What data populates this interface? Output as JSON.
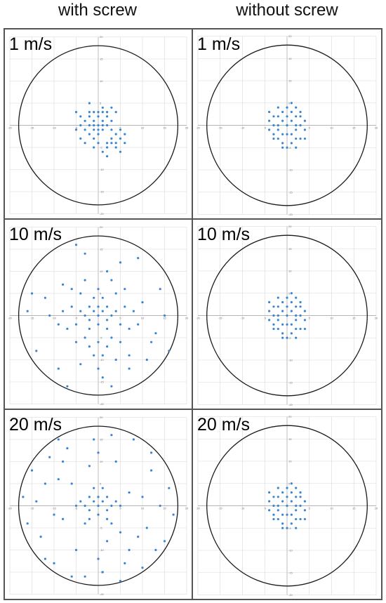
{
  "headers": {
    "left": "with screw",
    "right": "without screw"
  },
  "colors": {
    "points": "#3a86d4",
    "circle": "#1a1a1a",
    "grid": "#d8d8d8",
    "axis": "#b5b5b5"
  },
  "chart_data": [
    {
      "type": "scatter",
      "panel": "with screw, 1 m/s",
      "label": "1 m/s",
      "xlim": [
        -20,
        20
      ],
      "ylim": [
        -20,
        20
      ],
      "ticks": [
        -20,
        -15,
        -10,
        -5,
        0,
        5,
        10,
        15,
        20
      ],
      "grid": true,
      "boundary_radius": 18,
      "points": [
        [
          -3,
          1
        ],
        [
          -2,
          2
        ],
        [
          -1,
          1
        ],
        [
          0,
          2
        ],
        [
          1,
          1
        ],
        [
          2,
          2
        ],
        [
          -2,
          0
        ],
        [
          -1,
          0
        ],
        [
          0,
          0
        ],
        [
          1,
          0
        ],
        [
          2,
          0
        ],
        [
          -3,
          -1
        ],
        [
          -1,
          -1
        ],
        [
          0,
          -1
        ],
        [
          1,
          -1
        ],
        [
          -2,
          3
        ],
        [
          0,
          3
        ],
        [
          2,
          3
        ],
        [
          -4,
          0
        ],
        [
          3,
          1
        ],
        [
          -2,
          -2
        ],
        [
          0,
          -2
        ],
        [
          3,
          -1
        ],
        [
          1,
          3
        ],
        [
          -1,
          3
        ],
        [
          3,
          -3
        ],
        [
          4,
          -2
        ],
        [
          5,
          -3
        ],
        [
          4,
          -4
        ],
        [
          3,
          -4
        ],
        [
          2,
          -4
        ],
        [
          5,
          -1
        ],
        [
          6,
          -2
        ],
        [
          2,
          -5
        ],
        [
          4,
          -5
        ],
        [
          -1,
          -3
        ],
        [
          -4,
          2
        ],
        [
          -5,
          -1
        ],
        [
          -3,
          -4
        ],
        [
          -1,
          -5
        ],
        [
          1,
          -6
        ],
        [
          5,
          -6
        ],
        [
          2,
          -7
        ],
        [
          -5,
          3
        ],
        [
          4,
          3
        ],
        [
          -2,
          5
        ],
        [
          1,
          4
        ],
        [
          3,
          4
        ],
        [
          -4,
          -3
        ],
        [
          6,
          -4
        ],
        [
          0,
          -4
        ]
      ]
    },
    {
      "type": "scatter",
      "panel": "without screw, 1 m/s",
      "label": "1 m/s",
      "xlim": [
        -20,
        20
      ],
      "ylim": [
        -20,
        20
      ],
      "ticks": [
        -20,
        -15,
        -10,
        -5,
        0,
        5,
        10,
        15,
        20
      ],
      "grid": true,
      "boundary_radius": 18,
      "points": [
        [
          0,
          0
        ],
        [
          1,
          1
        ],
        [
          -1,
          1
        ],
        [
          2,
          -1
        ],
        [
          -2,
          -1
        ],
        [
          0,
          2
        ],
        [
          0,
          -2
        ],
        [
          3,
          0
        ],
        [
          -3,
          0
        ],
        [
          2,
          2
        ],
        [
          -2,
          2
        ],
        [
          2,
          -3
        ],
        [
          -2,
          -3
        ],
        [
          1,
          3
        ],
        [
          -1,
          3
        ],
        [
          3,
          2
        ],
        [
          -3,
          2
        ],
        [
          4,
          -1
        ],
        [
          -4,
          -1
        ],
        [
          1,
          -4
        ],
        [
          -1,
          -4
        ],
        [
          0,
          4
        ],
        [
          3,
          -3
        ],
        [
          -3,
          -3
        ],
        [
          4,
          1
        ],
        [
          -4,
          1
        ],
        [
          2,
          4
        ],
        [
          -2,
          4
        ],
        [
          0,
          -5
        ],
        [
          1,
          -2
        ],
        [
          -1,
          -2
        ],
        [
          2,
          0
        ],
        [
          -2,
          0
        ],
        [
          3,
          3
        ],
        [
          -3,
          -2
        ],
        [
          4,
          -3
        ],
        [
          -4,
          3
        ],
        [
          1,
          5
        ],
        [
          -1,
          -5
        ],
        [
          2,
          -5
        ]
      ]
    },
    {
      "type": "scatter",
      "panel": "with screw, 10 m/s",
      "label": "10 m/s",
      "xlim": [
        -20,
        20
      ],
      "ylim": [
        -20,
        20
      ],
      "ticks": [
        -20,
        -15,
        -10,
        -5,
        0,
        5,
        10,
        15,
        20
      ],
      "grid": true,
      "boundary_radius": 18,
      "points": [
        [
          0,
          0
        ],
        [
          1,
          1
        ],
        [
          -1,
          1
        ],
        [
          2,
          -1
        ],
        [
          -2,
          -1
        ],
        [
          0,
          2
        ],
        [
          0,
          -2
        ],
        [
          3,
          0
        ],
        [
          -3,
          0
        ],
        [
          2,
          2
        ],
        [
          -2,
          2
        ],
        [
          2,
          -3
        ],
        [
          -2,
          -3
        ],
        [
          4,
          1
        ],
        [
          -4,
          1
        ],
        [
          1,
          4
        ],
        [
          -1,
          4
        ],
        [
          5,
          -2
        ],
        [
          -5,
          -2
        ],
        [
          3,
          -5
        ],
        [
          -3,
          -5
        ],
        [
          6,
          2
        ],
        [
          -6,
          2
        ],
        [
          0,
          6
        ],
        [
          0,
          -6
        ],
        [
          7,
          -3
        ],
        [
          -7,
          -3
        ],
        [
          4,
          5
        ],
        [
          -4,
          5
        ],
        [
          2,
          -7
        ],
        [
          -2,
          -7
        ],
        [
          8,
          1
        ],
        [
          -8,
          1
        ],
        [
          5,
          -6
        ],
        [
          -5,
          -6
        ],
        [
          3,
          8
        ],
        [
          -3,
          8
        ],
        [
          9,
          -2
        ],
        [
          -9,
          -2
        ],
        [
          1,
          -9
        ],
        [
          -1,
          -9
        ],
        [
          6,
          6
        ],
        [
          -6,
          6
        ],
        [
          10,
          3
        ],
        [
          -11,
          0
        ],
        [
          4,
          -10
        ],
        [
          -4,
          -11
        ],
        [
          2,
          10
        ],
        [
          -8,
          7
        ],
        [
          12,
          -6
        ],
        [
          -12,
          4
        ],
        [
          7,
          -9
        ],
        [
          0,
          -12
        ],
        [
          1,
          -14
        ],
        [
          -7,
          -16
        ],
        [
          11,
          -10
        ],
        [
          13,
          -4
        ],
        [
          15,
          0
        ],
        [
          -15,
          5
        ],
        [
          -16,
          1
        ],
        [
          -5,
          16
        ],
        [
          5,
          12
        ],
        [
          9,
          13
        ],
        [
          -9,
          -12
        ],
        [
          -14,
          -8
        ],
        [
          16,
          -8
        ],
        [
          3,
          -16
        ],
        [
          7,
          -12
        ],
        [
          -3,
          14
        ],
        [
          14,
          6
        ]
      ]
    },
    {
      "type": "scatter",
      "panel": "without screw, 10 m/s",
      "label": "10 m/s",
      "xlim": [
        -20,
        20
      ],
      "ylim": [
        -20,
        20
      ],
      "ticks": [
        -20,
        -15,
        -10,
        -5,
        0,
        5,
        10,
        15,
        20
      ],
      "grid": true,
      "boundary_radius": 18,
      "points": [
        [
          0,
          0
        ],
        [
          1,
          1
        ],
        [
          -1,
          1
        ],
        [
          2,
          -1
        ],
        [
          -2,
          -1
        ],
        [
          0,
          2
        ],
        [
          0,
          -2
        ],
        [
          3,
          0
        ],
        [
          -3,
          0
        ],
        [
          2,
          2
        ],
        [
          -2,
          2
        ],
        [
          2,
          -3
        ],
        [
          -2,
          -3
        ],
        [
          1,
          3
        ],
        [
          -1,
          3
        ],
        [
          3,
          2
        ],
        [
          -3,
          2
        ],
        [
          4,
          -1
        ],
        [
          -4,
          -1
        ],
        [
          1,
          -4
        ],
        [
          -1,
          -4
        ],
        [
          0,
          4
        ],
        [
          3,
          -3
        ],
        [
          -3,
          -3
        ],
        [
          4,
          1
        ],
        [
          -4,
          1
        ],
        [
          2,
          4
        ],
        [
          -2,
          4
        ],
        [
          0,
          -5
        ],
        [
          1,
          -2
        ],
        [
          -1,
          -2
        ],
        [
          2,
          0
        ],
        [
          -2,
          0
        ],
        [
          3,
          3
        ],
        [
          -3,
          -2
        ],
        [
          4,
          -3
        ],
        [
          -4,
          3
        ],
        [
          1,
          5
        ],
        [
          -1,
          -5
        ],
        [
          2,
          -5
        ]
      ]
    },
    {
      "type": "scatter",
      "panel": "with screw, 20 m/s",
      "label": "20 m/s",
      "xlim": [
        -20,
        20
      ],
      "ylim": [
        -20,
        20
      ],
      "ticks": [
        -20,
        -15,
        -10,
        -5,
        0,
        5,
        10,
        15,
        20
      ],
      "grid": true,
      "boundary_radius": 18,
      "points": [
        [
          0,
          0
        ],
        [
          1,
          1
        ],
        [
          -1,
          1
        ],
        [
          2,
          -1
        ],
        [
          -2,
          -1
        ],
        [
          0,
          2
        ],
        [
          0,
          -2
        ],
        [
          3,
          0
        ],
        [
          -3,
          0
        ],
        [
          2,
          2
        ],
        [
          -2,
          2
        ],
        [
          2,
          -3
        ],
        [
          -2,
          -3
        ],
        [
          4,
          1
        ],
        [
          -4,
          1
        ],
        [
          1,
          4
        ],
        [
          -1,
          4
        ],
        [
          3,
          -4
        ],
        [
          -3,
          -4
        ],
        [
          5,
          0
        ],
        [
          -5,
          0
        ],
        [
          5,
          -6
        ],
        [
          -6,
          5
        ],
        [
          7,
          3
        ],
        [
          -8,
          -3
        ],
        [
          2,
          -8
        ],
        [
          -2,
          9
        ],
        [
          9,
          -7
        ],
        [
          -9,
          6
        ],
        [
          10,
          2
        ],
        [
          -10,
          -2
        ],
        [
          4,
          10
        ],
        [
          -5,
          -10
        ],
        [
          11,
          -5
        ],
        [
          -12,
          5
        ],
        [
          0,
          12
        ],
        [
          0,
          -12
        ],
        [
          12,
          8
        ],
        [
          -13,
          -7
        ],
        [
          6,
          -13
        ],
        [
          -7,
          13
        ],
        [
          14,
          0
        ],
        [
          -14,
          1
        ],
        [
          13,
          -10
        ],
        [
          -10,
          -13
        ],
        [
          8,
          15
        ],
        [
          -9,
          15
        ],
        [
          16,
          4
        ],
        [
          -16,
          -4
        ],
        [
          3,
          16
        ],
        [
          -3,
          -16
        ],
        [
          15,
          -8
        ],
        [
          -15,
          8
        ],
        [
          10,
          -14
        ],
        [
          -11,
          11
        ],
        [
          17,
          -2
        ],
        [
          -17,
          2
        ],
        [
          5,
          -17
        ],
        [
          -6,
          -16
        ],
        [
          12,
          12
        ],
        [
          -12,
          -12
        ],
        [
          7,
          -10
        ],
        [
          -8,
          10
        ],
        [
          1,
          -15
        ],
        [
          -1,
          15
        ]
      ]
    },
    {
      "type": "scatter",
      "panel": "without screw, 20 m/s",
      "label": "20 m/s",
      "xlim": [
        -20,
        20
      ],
      "ylim": [
        -20,
        20
      ],
      "ticks": [
        -20,
        -15,
        -10,
        -5,
        0,
        5,
        10,
        15,
        20
      ],
      "grid": true,
      "boundary_radius": 18,
      "points": [
        [
          0,
          0
        ],
        [
          1,
          1
        ],
        [
          -1,
          1
        ],
        [
          2,
          -1
        ],
        [
          -2,
          -1
        ],
        [
          0,
          2
        ],
        [
          0,
          -2
        ],
        [
          3,
          0
        ],
        [
          -3,
          0
        ],
        [
          2,
          2
        ],
        [
          -2,
          2
        ],
        [
          2,
          -3
        ],
        [
          -2,
          -3
        ],
        [
          1,
          3
        ],
        [
          -1,
          3
        ],
        [
          3,
          2
        ],
        [
          -3,
          2
        ],
        [
          4,
          -1
        ],
        [
          -4,
          -1
        ],
        [
          1,
          -4
        ],
        [
          -1,
          -4
        ],
        [
          0,
          4
        ],
        [
          3,
          -3
        ],
        [
          -3,
          -3
        ],
        [
          4,
          1
        ],
        [
          -4,
          1
        ],
        [
          2,
          4
        ],
        [
          -2,
          4
        ],
        [
          0,
          -5
        ],
        [
          1,
          -2
        ],
        [
          -1,
          -2
        ],
        [
          2,
          0
        ],
        [
          -2,
          0
        ],
        [
          3,
          3
        ],
        [
          -3,
          -2
        ],
        [
          4,
          -3
        ],
        [
          -4,
          3
        ],
        [
          1,
          5
        ],
        [
          -1,
          -5
        ],
        [
          2,
          -5
        ]
      ]
    }
  ]
}
